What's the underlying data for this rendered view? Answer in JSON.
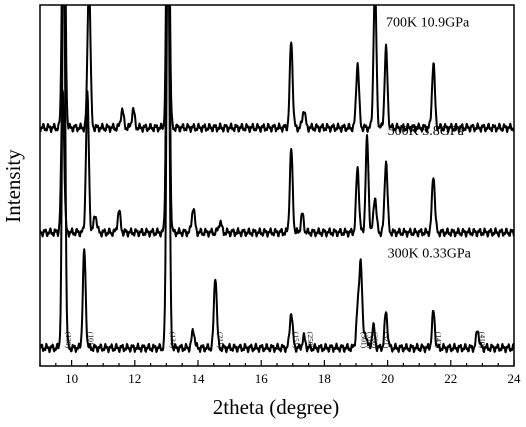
{
  "chart_data": {
    "type": "line",
    "title": "",
    "xlabel": "2theta (degree)",
    "ylabel": "Intensity",
    "xlim": [
      9,
      24
    ],
    "xticks": [
      10,
      12,
      14,
      16,
      18,
      20,
      22,
      24
    ],
    "y_tick_labels": false,
    "grid": false,
    "legend": "none",
    "line_color": "#000000",
    "series": [
      {
        "name": "300K 0.33GPa",
        "baseline": 0.05,
        "peaks": [
          {
            "x": 9.75,
            "h": 1.25
          },
          {
            "x": 10.4,
            "h": 0.27
          },
          {
            "x": 13.05,
            "h": 1.25
          },
          {
            "x": 13.85,
            "h": 0.05
          },
          {
            "x": 14.55,
            "h": 0.2
          },
          {
            "x": 16.95,
            "h": 0.1
          },
          {
            "x": 17.35,
            "h": 0.03
          },
          {
            "x": 19.05,
            "h": 0.1
          },
          {
            "x": 19.15,
            "h": 0.24
          },
          {
            "x": 19.3,
            "h": 0.04
          },
          {
            "x": 19.55,
            "h": 0.06
          },
          {
            "x": 19.95,
            "h": 0.1
          },
          {
            "x": 21.45,
            "h": 0.1
          },
          {
            "x": 22.85,
            "h": 0.05
          }
        ]
      },
      {
        "name": "500K 5.8GPa",
        "baseline": 0.37,
        "peaks": [
          {
            "x": 9.72,
            "h": 0.4
          },
          {
            "x": 10.5,
            "h": 0.38
          },
          {
            "x": 10.75,
            "h": 0.05
          },
          {
            "x": 11.5,
            "h": 0.06
          },
          {
            "x": 13.05,
            "h": 1.2
          },
          {
            "x": 13.85,
            "h": 0.07
          },
          {
            "x": 14.7,
            "h": 0.03
          },
          {
            "x": 16.95,
            "h": 0.23
          },
          {
            "x": 17.3,
            "h": 0.05
          },
          {
            "x": 19.05,
            "h": 0.18
          },
          {
            "x": 19.35,
            "h": 0.26
          },
          {
            "x": 19.6,
            "h": 0.1
          },
          {
            "x": 19.95,
            "h": 0.2
          },
          {
            "x": 21.45,
            "h": 0.16
          }
        ]
      },
      {
        "name": "700K 10.9GPa",
        "baseline": 0.66,
        "peaks": [
          {
            "x": 9.75,
            "h": 1.0
          },
          {
            "x": 10.55,
            "h": 0.42
          },
          {
            "x": 11.6,
            "h": 0.05
          },
          {
            "x": 11.95,
            "h": 0.05
          },
          {
            "x": 13.05,
            "h": 1.0
          },
          {
            "x": 16.95,
            "h": 0.24
          },
          {
            "x": 17.35,
            "h": 0.05
          },
          {
            "x": 19.05,
            "h": 0.18
          },
          {
            "x": 19.6,
            "h": 0.4
          },
          {
            "x": 19.95,
            "h": 0.22
          },
          {
            "x": 21.45,
            "h": 0.18
          }
        ]
      }
    ],
    "annotations": [
      {
        "text": "700K 10.9GPa",
        "x": 19.95,
        "y": 0.94
      },
      {
        "text": "500K 5.8GPa",
        "x": 20.0,
        "y": 0.64
      },
      {
        "text": "300K 0.33GPa",
        "x": 20.0,
        "y": 0.3
      }
    ],
    "hkl_labels": [
      {
        "text": "(130)",
        "x": 9.75
      },
      {
        "text": "(101)",
        "x": 10.45
      },
      {
        "text": "(131)",
        "x": 13.05
      },
      {
        "text": "(211)",
        "x": 14.55
      },
      {
        "text": "(151)",
        "x": 16.95
      },
      {
        "text": "(250)",
        "x": 17.4
      },
      {
        "text": "(301)",
        "x": 19.1
      },
      {
        "text": "(311)",
        "x": 19.28
      },
      {
        "text": "(260)",
        "x": 19.45
      },
      {
        "text": "(321)",
        "x": 19.8
      },
      {
        "text": "(142)",
        "x": 21.45
      },
      {
        "text": "(410)",
        "x": 22.85
      }
    ]
  }
}
